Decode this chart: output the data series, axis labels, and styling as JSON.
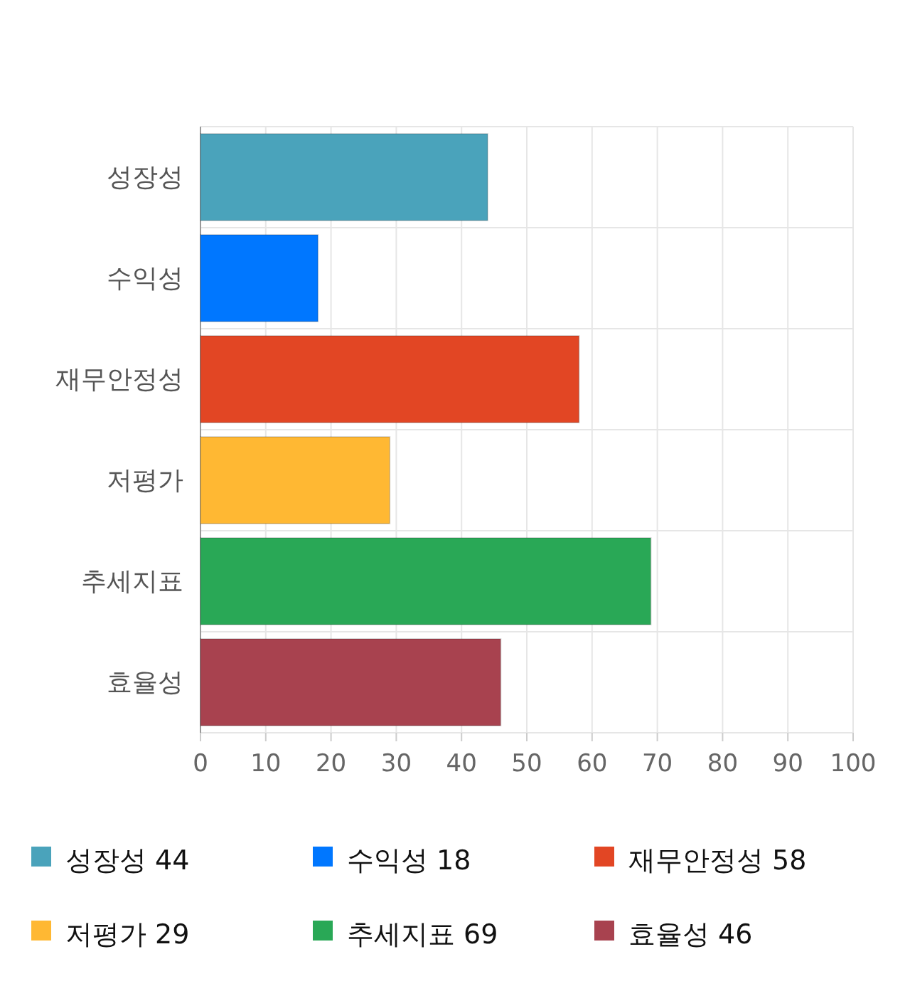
{
  "chart_data": {
    "type": "bar",
    "orientation": "horizontal",
    "categories": [
      "성장성",
      "수익성",
      "재무안정성",
      "저평가",
      "추세지표",
      "효율성"
    ],
    "series": [
      {
        "name": "성장성 44",
        "color": "#4aa3bb",
        "values": [
          44,
          null,
          null,
          null,
          null,
          null
        ]
      },
      {
        "name": "수익성 18",
        "color": "#0077ff",
        "values": [
          null,
          18,
          null,
          null,
          null,
          null
        ]
      },
      {
        "name": "재무안정성 58",
        "color": "#e24624",
        "values": [
          null,
          null,
          58,
          null,
          null,
          null
        ]
      },
      {
        "name": "저평가 29",
        "color": "#ffb833",
        "values": [
          null,
          null,
          null,
          29,
          null,
          null
        ]
      },
      {
        "name": "추세지표 69",
        "color": "#29a856",
        "values": [
          null,
          null,
          null,
          null,
          69,
          null
        ]
      },
      {
        "name": "효율성 46",
        "color": "#a8424f",
        "values": [
          null,
          null,
          null,
          null,
          null,
          46
        ]
      }
    ],
    "xlim": [
      0,
      100
    ],
    "xticks": [
      0,
      10,
      20,
      30,
      40,
      50,
      60,
      70,
      80,
      90,
      100
    ],
    "grid": true,
    "legend": "bottom"
  }
}
